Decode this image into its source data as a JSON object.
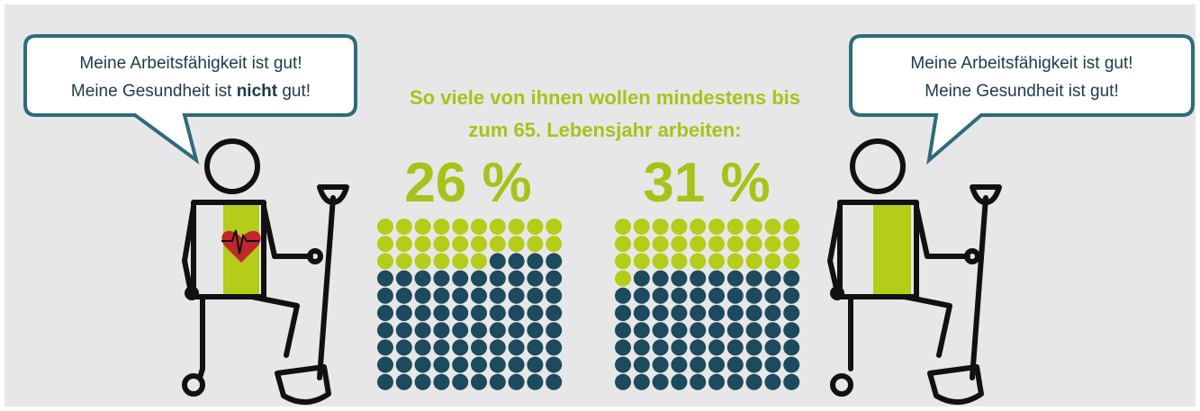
{
  "title": [
    "So viele von ihnen wollen mindestens bis",
    "zum 65. Lebensjahr arbeiten:"
  ],
  "chart_data": [
    {
      "type": "waffle",
      "values": [
        26
      ],
      "value_labels": [
        "26 %"
      ],
      "colors": [
        "#b5cc18",
        "#1d4a5c"
      ],
      "speech": [
        [
          "Meine Arbeitsfähigkeit ist gut!"
        ],
        [
          "Meine Gesundheit ist ",
          "nicht",
          " gut!"
        ]
      ],
      "bold": [
        1,
        1
      ]
    },
    {
      "type": "waffle",
      "values": [
        31
      ],
      "value_labels": [
        "31 %"
      ],
      "colors": [
        "#b5cc18",
        "#1d4a5c"
      ],
      "speech": [
        [
          "Meine Arbeitsfähigkeit ist gut!"
        ],
        [
          "Meine Gesundheit ist gut!"
        ]
      ],
      "bold": [
        1,
        -1
      ]
    }
  ]
}
